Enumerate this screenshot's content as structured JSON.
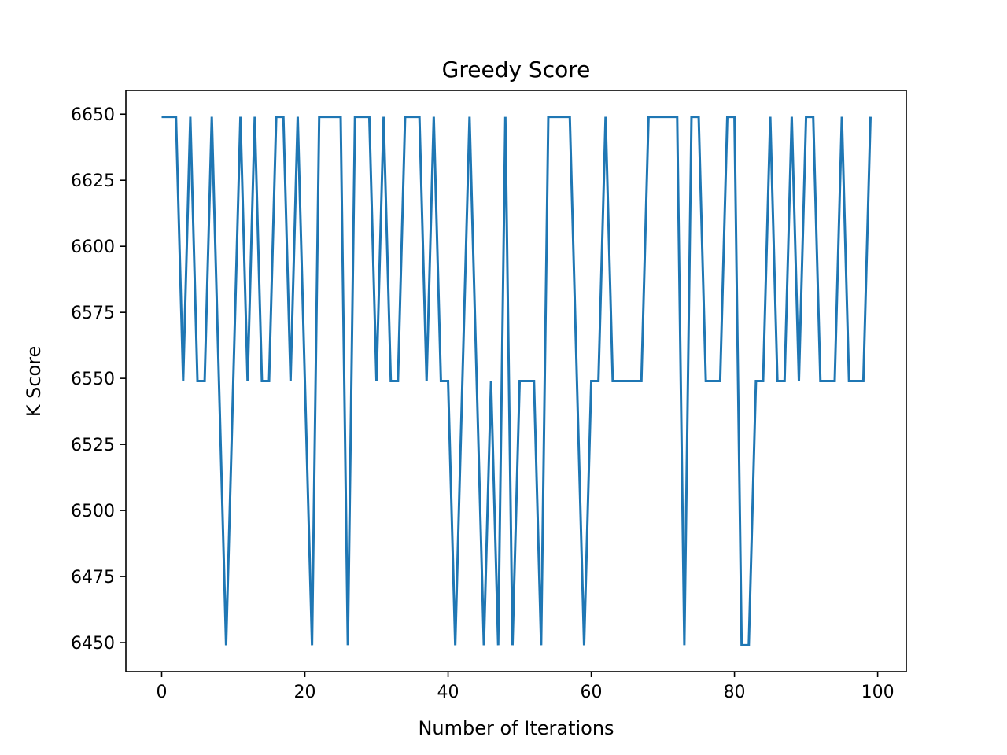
{
  "chart_data": {
    "type": "line",
    "title": "Greedy Score",
    "xlabel": "Number of Iterations",
    "ylabel": "K Score",
    "xlim": [
      -5,
      104
    ],
    "ylim": [
      6439,
      6659
    ],
    "xticks": [
      0,
      20,
      40,
      60,
      80,
      100
    ],
    "yticks": [
      6450,
      6475,
      6500,
      6525,
      6550,
      6575,
      6600,
      6625,
      6650
    ],
    "grid": false,
    "line_color": "#1f77b4",
    "series": [
      {
        "x": [
          0,
          1,
          2,
          3,
          4,
          5,
          6,
          7,
          8,
          9,
          10,
          11,
          12,
          13,
          14,
          15,
          16,
          17,
          18,
          19,
          20,
          21,
          22,
          23,
          24,
          25,
          26,
          27,
          28,
          29,
          30,
          31,
          32,
          33,
          34,
          35,
          36,
          37,
          38,
          39,
          40,
          41,
          42,
          43,
          44,
          45,
          46,
          47,
          48,
          49,
          50,
          51,
          52,
          53,
          54,
          55,
          56,
          57,
          58,
          59,
          60,
          61,
          62,
          63,
          64,
          65,
          66,
          67,
          68,
          69,
          70,
          71,
          72,
          73,
          74,
          75,
          76,
          77,
          78,
          79,
          80,
          81,
          82,
          83,
          84,
          85,
          86,
          87,
          88,
          89,
          90,
          91,
          92,
          93,
          94,
          95,
          96,
          97,
          98,
          99
        ],
        "values": [
          6649,
          6649,
          6649,
          6549,
          6649,
          6549,
          6549,
          6649,
          6549,
          6449,
          6549,
          6649,
          6549,
          6649,
          6549,
          6549,
          6649,
          6649,
          6549,
          6649,
          6549,
          6449,
          6649,
          6649,
          6649,
          6649,
          6449,
          6649,
          6649,
          6649,
          6549,
          6649,
          6549,
          6549,
          6649,
          6649,
          6649,
          6549,
          6649,
          6549,
          6549,
          6449,
          6549,
          6649,
          6549,
          6449,
          6549,
          6449,
          6649,
          6449,
          6549,
          6549,
          6549,
          6449,
          6649,
          6649,
          6649,
          6649,
          6549,
          6449,
          6549,
          6549,
          6649,
          6549,
          6549,
          6549,
          6549,
          6549,
          6649,
          6649,
          6649,
          6649,
          6649,
          6449,
          6649,
          6649,
          6549,
          6549,
          6549,
          6649,
          6649,
          6449,
          6449,
          6549,
          6549,
          6649,
          6549,
          6549,
          6649,
          6549,
          6649,
          6649,
          6549,
          6549,
          6549,
          6649,
          6549,
          6549,
          6549,
          6649
        ]
      }
    ]
  }
}
